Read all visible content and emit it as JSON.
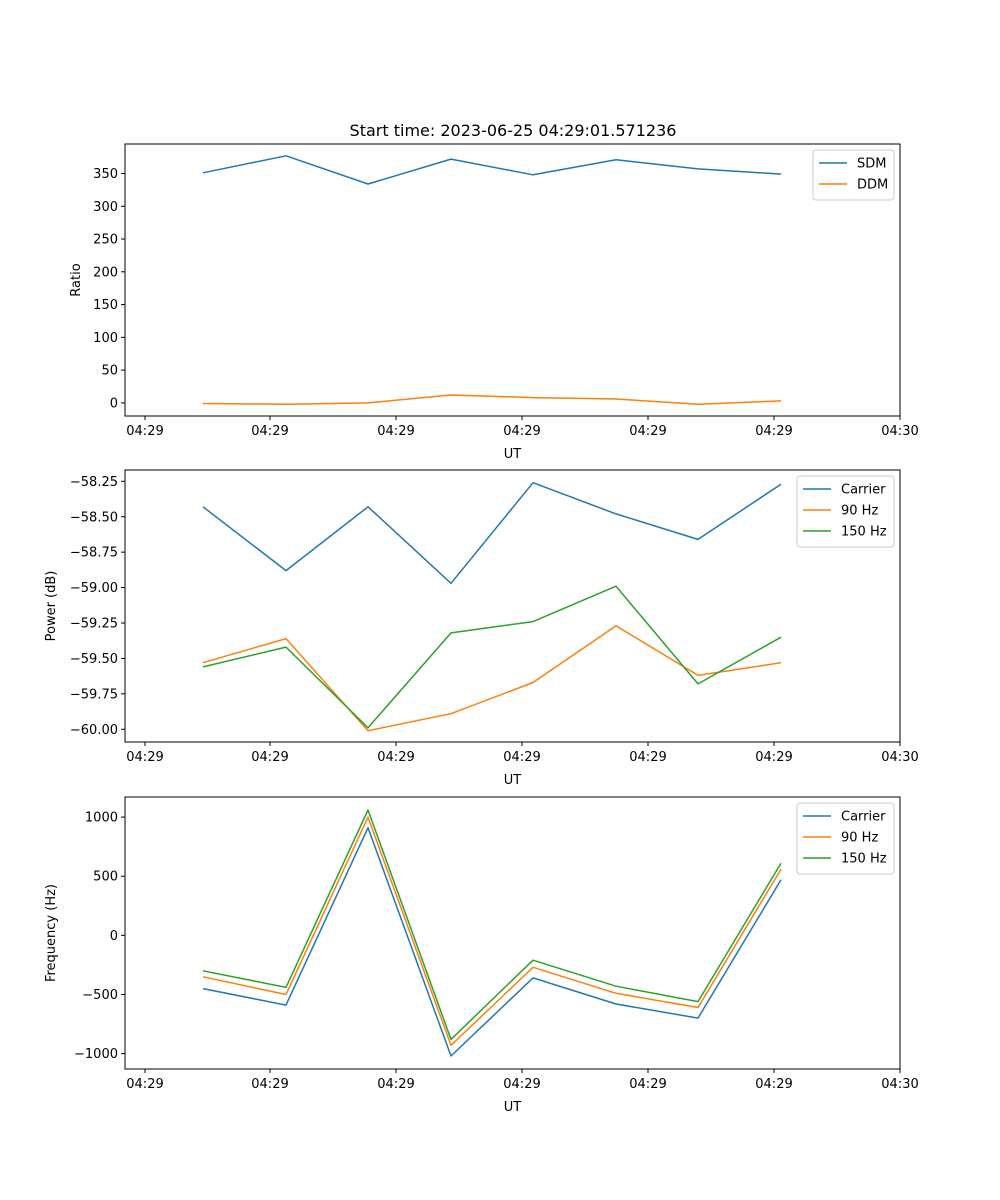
{
  "title": "Start time: 2023-06-25 04:29:01.571236",
  "x_tick_labels": [
    "04:29",
    "04:29",
    "04:29",
    "04:29",
    "04:29",
    "04:29",
    "04:30"
  ],
  "colors": {
    "blue": "#1f77b4",
    "orange": "#ff7f0e",
    "green": "#2ca02c"
  },
  "chart_data": [
    {
      "type": "line",
      "title": "Start time: 2023-06-25 04:29:01.571236",
      "xlabel": "UT",
      "ylabel": "Ratio",
      "ylim": [
        -20,
        395
      ],
      "yticks": [
        0,
        50,
        100,
        150,
        200,
        250,
        300,
        350
      ],
      "ytick_labels": [
        "0",
        "50",
        "100",
        "150",
        "200",
        "250",
        "300",
        "350"
      ],
      "legend_position": "top-right",
      "series": [
        {
          "name": "SDM",
          "color": "#1f77b4",
          "values": [
            351,
            377,
            334,
            372,
            348,
            371,
            357,
            349
          ]
        },
        {
          "name": "DDM",
          "color": "#ff7f0e",
          "values": [
            -1,
            -2,
            0,
            12,
            8,
            6,
            -2,
            3
          ]
        }
      ]
    },
    {
      "type": "line",
      "title": "",
      "xlabel": "UT",
      "ylabel": "Power (dB)",
      "ylim": [
        -60.09,
        -58.17
      ],
      "yticks": [
        -60.0,
        -59.75,
        -59.5,
        -59.25,
        -59.0,
        -58.75,
        -58.5,
        -58.25
      ],
      "ytick_labels": [
        "−60.00",
        "−59.75",
        "−59.50",
        "−59.25",
        "−59.00",
        "−58.75",
        "−58.50",
        "−58.25"
      ],
      "legend_position": "top-right",
      "series": [
        {
          "name": "Carrier",
          "color": "#1f77b4",
          "values": [
            -58.43,
            -58.88,
            -58.43,
            -58.97,
            -58.26,
            -58.48,
            -58.66,
            -58.27
          ]
        },
        {
          "name": "90 Hz",
          "color": "#ff7f0e",
          "values": [
            -59.53,
            -59.36,
            -60.01,
            -59.89,
            -59.67,
            -59.27,
            -59.62,
            -59.53
          ]
        },
        {
          "name": "150 Hz",
          "color": "#2ca02c",
          "values": [
            -59.56,
            -59.42,
            -59.99,
            -59.32,
            -59.24,
            -58.99,
            -59.68,
            -59.35
          ]
        }
      ]
    },
    {
      "type": "line",
      "title": "",
      "xlabel": "UT",
      "ylabel": "Frequency (Hz)",
      "ylim": [
        -1130,
        1170
      ],
      "yticks": [
        -1000,
        -500,
        0,
        500,
        1000
      ],
      "ytick_labels": [
        "−1000",
        "−500",
        "0",
        "500",
        "1000"
      ],
      "legend_position": "top-right",
      "series": [
        {
          "name": "Carrier",
          "color": "#1f77b4",
          "values": [
            -450,
            -590,
            910,
            -1020,
            -360,
            -580,
            -700,
            470
          ]
        },
        {
          "name": "90 Hz",
          "color": "#ff7f0e",
          "values": [
            -350,
            -500,
            1000,
            -930,
            -270,
            -490,
            -610,
            560
          ]
        },
        {
          "name": "150 Hz",
          "color": "#2ca02c",
          "values": [
            -300,
            -440,
            1060,
            -880,
            -210,
            -430,
            -560,
            610
          ]
        }
      ]
    }
  ]
}
